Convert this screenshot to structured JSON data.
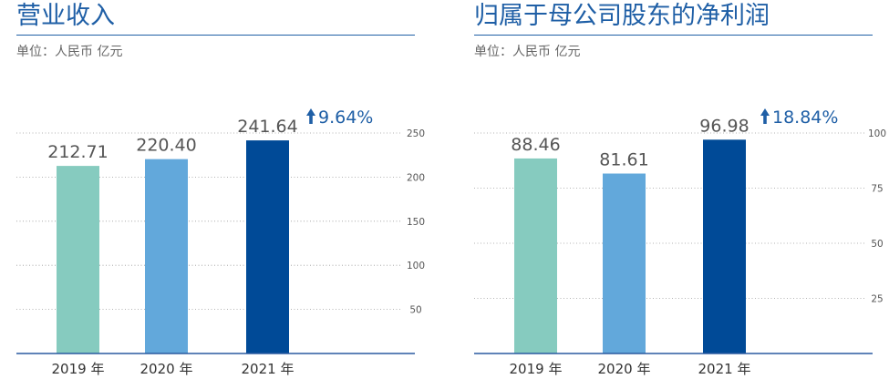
{
  "chart_data": [
    {
      "type": "bar",
      "title": "营业收入",
      "subtitle": "单位：人民币 亿元",
      "categories": [
        "2019 年",
        "2020 年",
        "2021 年"
      ],
      "values": [
        212.71,
        220.4,
        241.64
      ],
      "value_labels": [
        "212.71",
        "220.40",
        "241.64"
      ],
      "bar_colors": [
        "#86cbbf",
        "#62a8db",
        "#004a97"
      ],
      "growth_label": "9.64%",
      "growth_direction": "up",
      "y_ticks": [
        50,
        100,
        150,
        200,
        250
      ],
      "y_tick_labels": [
        "50",
        "100",
        "150",
        "200",
        "250"
      ],
      "ylim": [
        0,
        250
      ],
      "grid": true,
      "grid_style": "dotted",
      "axis_side": "right",
      "xlabel": "",
      "ylabel": ""
    },
    {
      "type": "bar",
      "title": "归属于母公司股东的净利润",
      "subtitle": "单位：人民币 亿元",
      "categories": [
        "2019 年",
        "2020 年",
        "2021 年"
      ],
      "values": [
        88.46,
        81.61,
        96.98
      ],
      "value_labels": [
        "88.46",
        "81.61",
        "96.98"
      ],
      "bar_colors": [
        "#86cbbf",
        "#62a8db",
        "#004a97"
      ],
      "growth_label": "18.84%",
      "growth_direction": "up",
      "y_ticks": [
        25,
        50,
        75,
        100
      ],
      "y_tick_labels": [
        "25",
        "50",
        "75",
        "100"
      ],
      "ylim": [
        0,
        100
      ],
      "grid": true,
      "grid_style": "dotted",
      "axis_side": "right",
      "xlabel": "",
      "ylabel": ""
    }
  ]
}
